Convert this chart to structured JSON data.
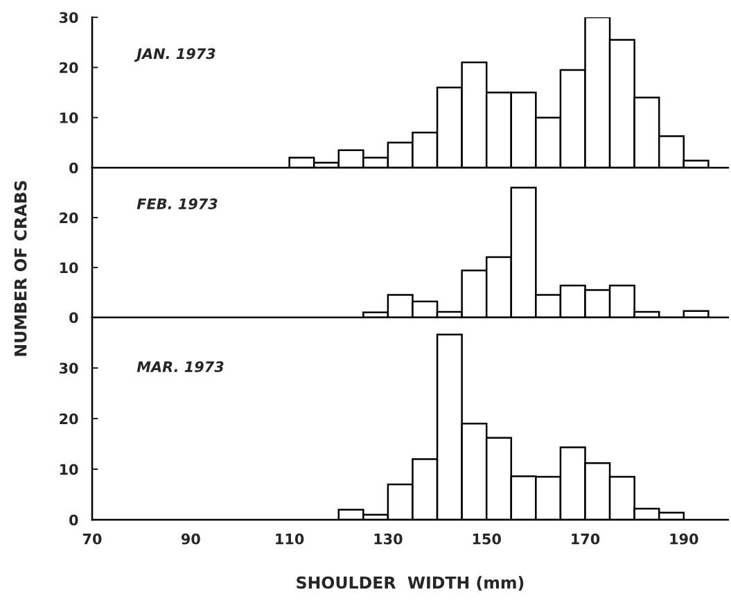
{
  "chart_data": [
    {
      "type": "histogram",
      "annotations": [
        "JAN. 1973"
      ],
      "bins": [
        110,
        115,
        120,
        125,
        130,
        135,
        140,
        145,
        150,
        155,
        160,
        165,
        170,
        175,
        180,
        185,
        190,
        195
      ],
      "values": [
        2,
        1,
        3.5,
        2,
        5,
        7,
        16,
        21,
        15,
        15,
        10,
        19.5,
        30,
        25.5,
        14,
        6.3,
        1.4
      ],
      "xlim": [
        70,
        199
      ],
      "xticks": [
        70,
        90,
        110,
        130,
        150,
        170,
        190
      ],
      "ylim": [
        0,
        30
      ],
      "yticks": [
        0,
        10,
        20,
        30
      ],
      "tick_labels": "y",
      "grid": false
    },
    {
      "type": "histogram",
      "annotations": [
        "FEB. 1973"
      ],
      "ylabel": "NUMBER OF CRABS",
      "bins": [
        125,
        130,
        135,
        140,
        145,
        150,
        155,
        160,
        165,
        170,
        175,
        180,
        185,
        190,
        195
      ],
      "values": [
        1,
        4.5,
        3.2,
        1.1,
        9.4,
        12.1,
        26,
        4.5,
        6.4,
        5.5,
        6.4,
        1.1,
        0,
        1.3
      ],
      "xlim": [
        70,
        199
      ],
      "xticks": [
        70,
        90,
        110,
        130,
        150,
        170,
        190
      ],
      "ylim": [
        0,
        30
      ],
      "yticks": [
        0,
        10,
        20
      ],
      "tick_labels": "y",
      "grid": false
    },
    {
      "type": "histogram",
      "annotations": [
        "MAR. 1973"
      ],
      "xlabel": "SHOULDER  WIDTH (mm)",
      "bins": [
        120,
        125,
        130,
        135,
        140,
        145,
        150,
        155,
        160,
        165,
        170,
        175,
        180,
        185,
        190
      ],
      "values": [
        2,
        1,
        7,
        12,
        36.6,
        19,
        16.2,
        8.6,
        8.5,
        14.3,
        11.2,
        8.5,
        2.2,
        1.4
      ],
      "xlim": [
        70,
        199
      ],
      "xticks": [
        70,
        90,
        110,
        130,
        150,
        170,
        190
      ],
      "ylim": [
        0,
        40
      ],
      "yticks": [
        0,
        10,
        20,
        30
      ],
      "grid": false
    }
  ]
}
